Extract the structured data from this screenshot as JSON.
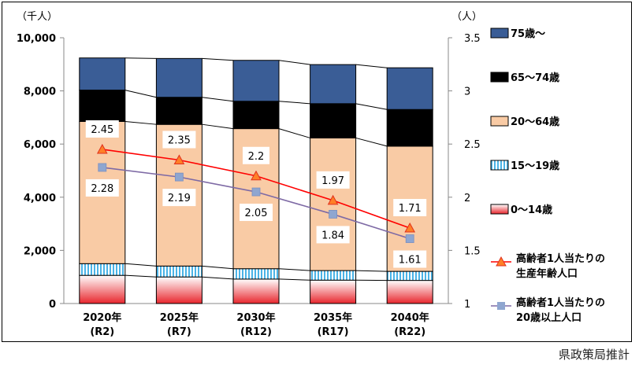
{
  "source_note": "県政策局推計",
  "chart_data": {
    "type": "bar",
    "subtype": "stacked-bar-with-line",
    "categories": [
      "2020年\n(R2)",
      "2025年\n(R7)",
      "2030年\n(R12)",
      "2035年\n(R17)",
      "2040年\n(R22)"
    ],
    "left_axis": {
      "unit": "（千人）",
      "ylim": [
        0,
        10000
      ],
      "ticks": [
        0,
        2000,
        4000,
        6000,
        8000,
        10000
      ],
      "tick_labels": [
        "0",
        "2,000",
        "4,000",
        "6,000",
        "8,000",
        "10,000"
      ]
    },
    "right_axis": {
      "unit": "（人）",
      "ylim": [
        1,
        3.5
      ],
      "ticks": [
        1,
        1.5,
        2,
        2.5,
        3,
        3.5
      ],
      "tick_labels": [
        "1",
        "1.5",
        "2",
        "2.5",
        "3",
        "3.5"
      ]
    },
    "bar_series": [
      {
        "name": "0～14歳",
        "values": [
          1060,
          1000,
          920,
          880,
          870
        ],
        "color": "#e8262d",
        "pattern": "gradient"
      },
      {
        "name": "15～19歳",
        "values": [
          440,
          410,
          390,
          360,
          340
        ],
        "color": "#8fd7f0",
        "pattern": "stripes"
      },
      {
        "name": "20～64歳",
        "values": [
          5350,
          5330,
          5270,
          4990,
          4710
        ],
        "color": "#f9cba5",
        "pattern": "solid"
      },
      {
        "name": "65～74歳",
        "values": [
          1180,
          1020,
          1030,
          1290,
          1380
        ],
        "color": "#000000",
        "pattern": "solid"
      },
      {
        "name": "75歳～",
        "values": [
          1210,
          1460,
          1540,
          1470,
          1570
        ],
        "color": "#3a5d96",
        "pattern": "solid"
      }
    ],
    "line_series": [
      {
        "name": "高齢者1人当たりの生産年齢人口",
        "values": [
          2.45,
          2.35,
          2.2,
          1.97,
          1.71
        ],
        "labels": [
          "2.45",
          "2.35",
          "2.2",
          "1.97",
          "1.71"
        ],
        "color": "#ff0000",
        "marker": "triangle"
      },
      {
        "name": "高齢者1人当たりの20歳以上人口",
        "values": [
          2.28,
          2.19,
          2.05,
          1.84,
          1.61
        ],
        "labels": [
          "2.28",
          "2.19",
          "2.05",
          "1.84",
          "1.61"
        ],
        "color": "#7e6aa5",
        "marker_color": "#8fa6d0",
        "marker": "square"
      }
    ],
    "legend_position": "right",
    "grid": false
  }
}
